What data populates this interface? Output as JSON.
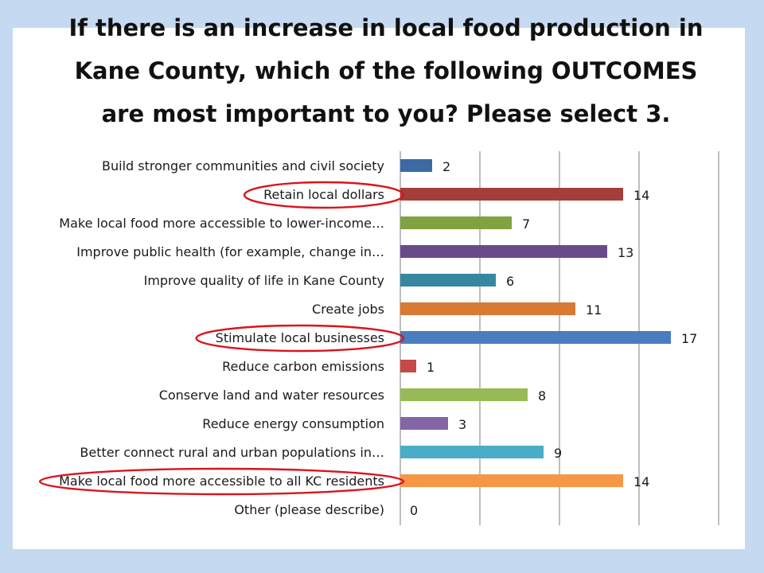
{
  "title": "If there is an increase in local food production in Kane County, which of the following OUTCOMES are most important to you? Please select 3.",
  "chart_data": {
    "type": "bar",
    "orientation": "horizontal",
    "categories": [
      "Build stronger communities and civil society",
      "Retain local dollars",
      "Make local food more accessible to lower-income…",
      "Improve public health (for example, change in…",
      "Improve quality of life in Kane County",
      "Create jobs",
      "Stimulate local businesses",
      "Reduce carbon emissions",
      "Conserve land and water resources",
      "Reduce energy consumption",
      "Better connect rural and urban populations in…",
      "Make local food more accessible to all KC residents",
      "Other (please describe)"
    ],
    "values": [
      2,
      14,
      7,
      13,
      6,
      11,
      17,
      1,
      8,
      3,
      9,
      14,
      0
    ],
    "bar_colors": [
      "#3d6aa4",
      "#a33e3b",
      "#80a241",
      "#6a4b8a",
      "#37889e",
      "#d87a34",
      "#4a7cc0",
      "#c54a47",
      "#99b957",
      "#8466a6",
      "#4aacc8",
      "#f79646",
      "#7f7f7f"
    ],
    "xlim": [
      0,
      20
    ],
    "grid": "vertical",
    "highlighted_categories": [
      1,
      6,
      11
    ],
    "highlight_color": "#d9151c"
  }
}
